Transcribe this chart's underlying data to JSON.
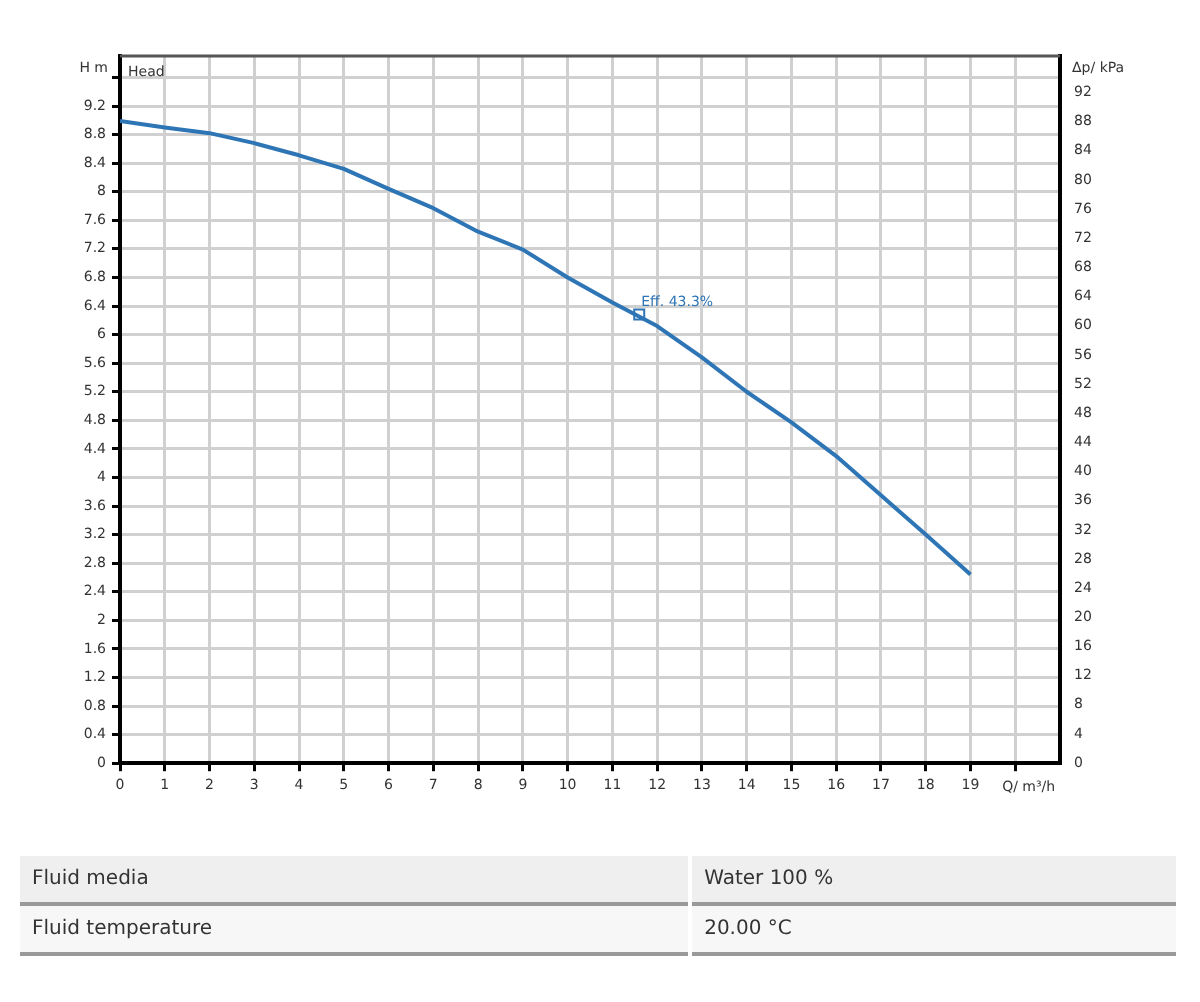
{
  "chart_data": {
    "type": "line",
    "xlabel": "Q/ m³/h",
    "ylabel": "H m",
    "y2label": "Δp/ kPa",
    "x": [
      0,
      1,
      2,
      3,
      4,
      5,
      6,
      7,
      8,
      9,
      10,
      11,
      12,
      13,
      14,
      15,
      16,
      17,
      18,
      19
    ],
    "series": [
      {
        "color": "#2e75b6",
        "values": [
          8.99,
          8.9,
          8.82,
          8.68,
          8.51,
          8.32,
          8.04,
          7.77,
          7.44,
          7.19,
          6.8,
          6.45,
          6.12,
          5.68,
          5.2,
          4.77,
          4.3,
          3.75,
          3.2,
          2.64
        ]
      }
    ],
    "xlim": [
      0,
      21
    ],
    "xticks": [
      0,
      1,
      2,
      3,
      4,
      5,
      6,
      7,
      8,
      9,
      10,
      11,
      12,
      13,
      14,
      15,
      16,
      17,
      18,
      19,
      {
        "value": 20,
        "label": null
      }
    ],
    "ylim": [
      0,
      9.9
    ],
    "yticks": [
      0,
      0.4,
      0.8,
      1.2,
      1.6,
      2,
      2.4,
      2.8,
      3.2,
      3.6,
      4,
      4.4,
      4.8,
      5.2,
      5.6,
      6,
      6.4,
      6.8,
      7.2,
      7.6,
      8,
      8.4,
      8.8,
      9.2,
      {
        "value": 9.6,
        "label": null
      }
    ],
    "y2lim": [
      0,
      97
    ],
    "y2ticks": [
      0,
      4,
      8,
      12,
      16,
      20,
      24,
      28,
      32,
      36,
      40,
      44,
      48,
      52,
      56,
      60,
      64,
      68,
      72,
      76,
      80,
      84,
      88,
      92
    ],
    "grid": true,
    "legend": false,
    "marker": "none",
    "line_style": "solid",
    "annotations": [
      "Head",
      {
        "text": "Eff. 43.3%",
        "x": 11.6,
        "y": 6.28
      },
      "Fluid media",
      "Water 100 %",
      "Fluid temperature",
      "20.00 °C"
    ]
  }
}
